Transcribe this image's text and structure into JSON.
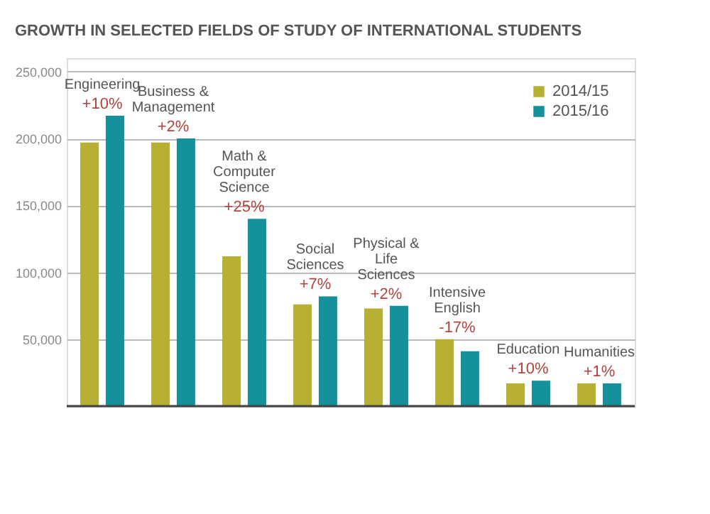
{
  "chart_data": {
    "type": "bar",
    "title": "GROWTH IN SELECTED FIELDS OF STUDY OF INTERNATIONAL STUDENTS",
    "categories": [
      "Engineering",
      "Business & Management",
      "Math & Computer Science",
      "Social Sciences",
      "Physical & Life Sciences",
      "Intensive English",
      "Education",
      "Humanities"
    ],
    "series": [
      {
        "name": "2014/15",
        "color": "#b8b034",
        "values": [
          197000,
          197000,
          112000,
          76000,
          73000,
          50000,
          17000,
          17000
        ]
      },
      {
        "name": "2015/16",
        "color": "#15919c",
        "values": [
          217000,
          200000,
          140000,
          82000,
          75000,
          41000,
          19000,
          17000
        ]
      }
    ],
    "annotations": [
      {
        "text": "+10%",
        "x": "Engineering",
        "y": 217000
      },
      {
        "text": "+2%",
        "x": "Business & Management",
        "y": 200000
      },
      {
        "text": "+25%",
        "x": "Math & Computer Science",
        "y": 140000
      },
      {
        "text": "+7%",
        "x": "Social Sciences",
        "y": 82000
      },
      {
        "text": "+2%",
        "x": "Physical & Life Sciences",
        "y": 75000
      },
      {
        "text": "-17%",
        "x": "Intensive English",
        "y": 50000
      },
      {
        "text": "+10%",
        "x": "Education",
        "y": 19000
      },
      {
        "text": "+1%",
        "x": "Humanities",
        "y": 17000
      }
    ],
    "ylim": [
      0,
      260000
    ],
    "yticks": [
      {
        "value": 0,
        "label": null
      },
      {
        "value": 50000,
        "label": "50,000"
      },
      {
        "value": 100000,
        "label": "100,000"
      },
      {
        "value": 150000,
        "label": "150,000"
      },
      {
        "value": 200000,
        "label": "200,000"
      },
      {
        "value": 250000,
        "label": "250,000"
      }
    ],
    "grid": "y",
    "legend": "top right",
    "tick_labels": "y"
  }
}
